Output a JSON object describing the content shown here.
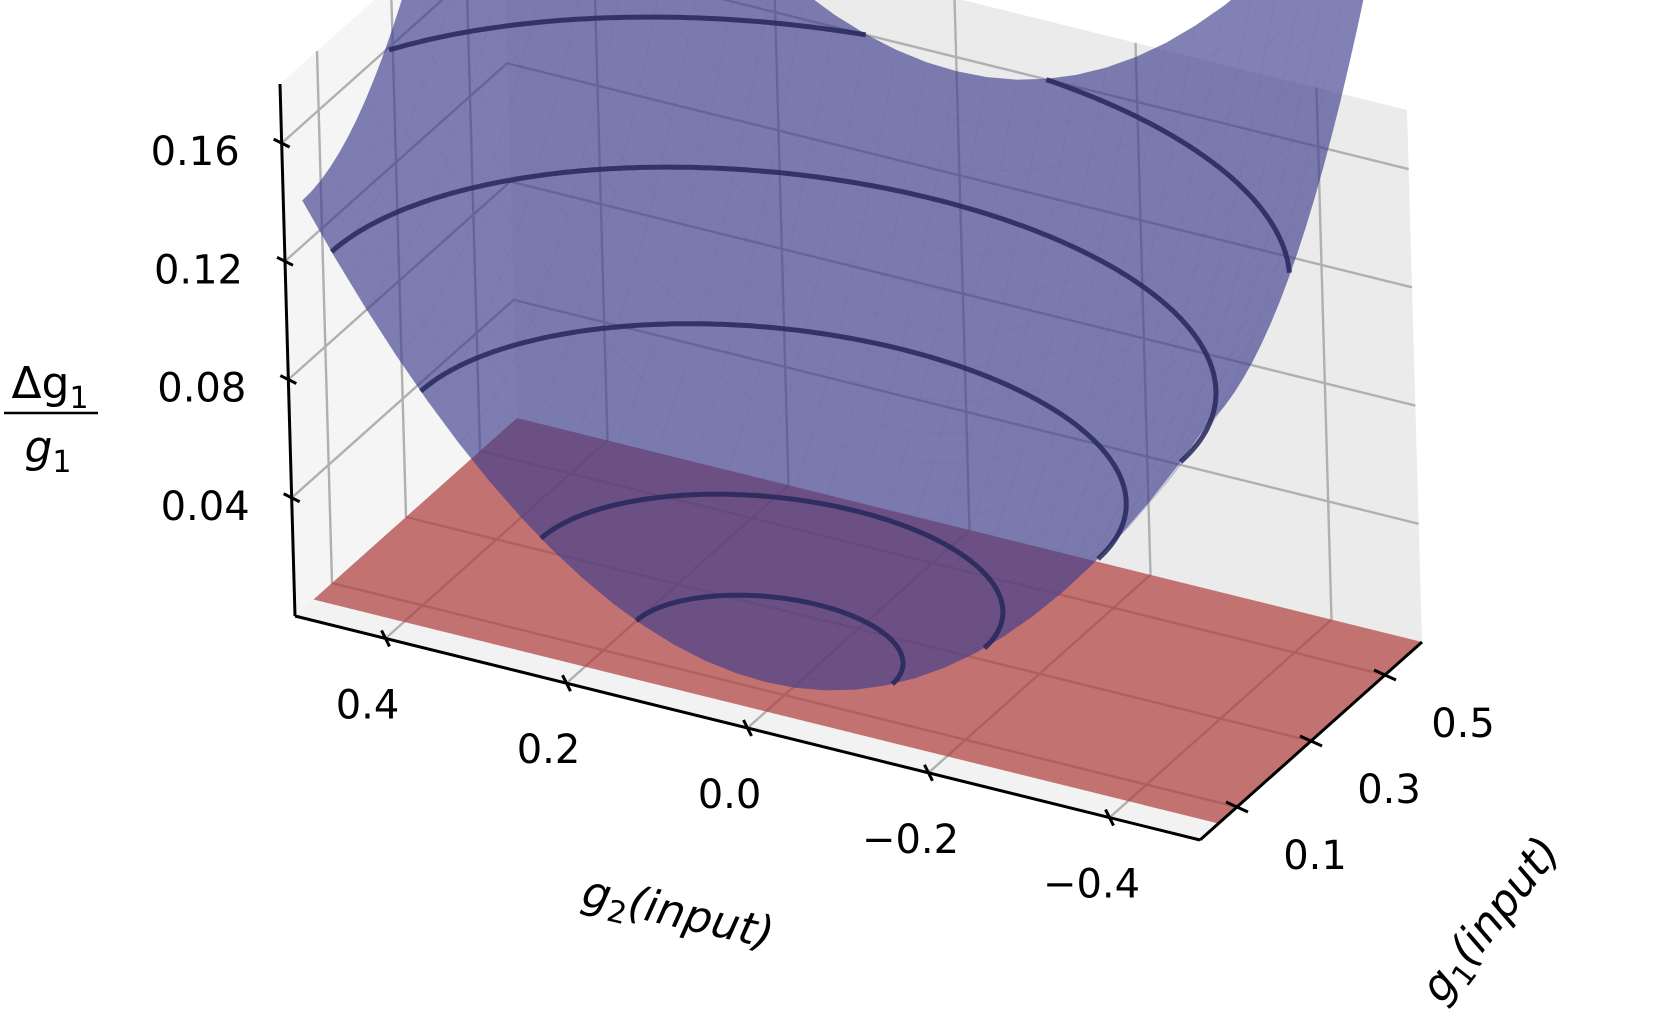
{
  "chart_data": {
    "type": "surface3d",
    "title": "",
    "x_axis": {
      "label": "g",
      "label_subscript": "1",
      "label_suffix": "(input)",
      "range": [
        0.0,
        0.6
      ],
      "ticks": [
        0.1,
        0.3,
        0.5
      ],
      "tick_labels": [
        "0.1",
        "0.3",
        "0.5"
      ]
    },
    "y_axis": {
      "label": "g",
      "label_subscript": "2",
      "label_suffix": "(input)",
      "range": [
        -0.5,
        0.5
      ],
      "ticks": [
        0.4,
        0.2,
        0.0,
        -0.2,
        -0.4
      ],
      "tick_labels": [
        "0.4",
        "0.2",
        "0.0",
        "−0.2",
        "−0.4"
      ]
    },
    "z_axis": {
      "label_numerator": "Δg",
      "label_numerator_subscript": "1",
      "label_denominator": "g",
      "label_denominator_subscript": "1",
      "range": [
        0.0,
        0.18
      ],
      "ticks": [
        0.04,
        0.08,
        0.12,
        0.16
      ],
      "tick_labels": [
        "0.04",
        "0.08",
        "0.12",
        "0.16"
      ]
    },
    "grid": true,
    "surfaces": [
      {
        "kind": "function",
        "formula": "z = 0.01 + 0.48*(g1-0.05)^2 + 0.5*g2^2",
        "g1_range": [
          0.05,
          0.6
        ],
        "g2_range": [
          -0.5,
          0.5
        ],
        "color": "#3f3f8f",
        "alpha": 0.68
      },
      {
        "kind": "plane",
        "z": 0.0,
        "color": "#b04040",
        "alpha": 0.72
      }
    ],
    "contour_levels": [
      0.02,
      0.04,
      0.08,
      0.12,
      0.16
    ],
    "contour_color": "#26275a"
  }
}
